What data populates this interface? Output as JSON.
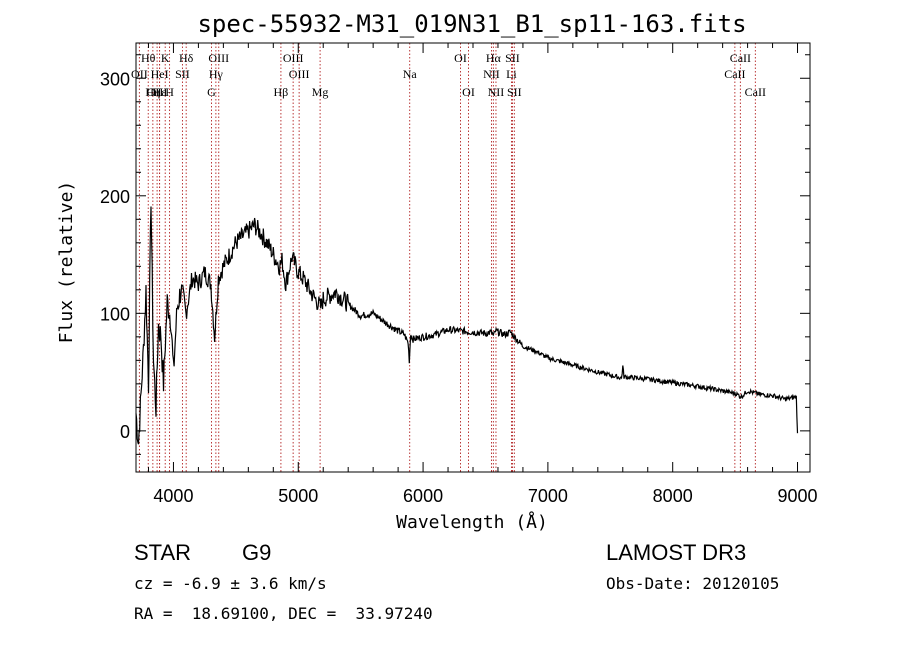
{
  "chart_data": {
    "type": "line",
    "title": "spec-55932-M31_019N31_B1_sp11-163.fits",
    "xlabel": "Wavelength (Å)",
    "ylabel": "Flux (relative)",
    "xlim": [
      3700,
      9100
    ],
    "ylim": [
      -35,
      330
    ],
    "xticks": [
      4000,
      5000,
      6000,
      7000,
      8000,
      9000
    ],
    "xtick_labels": [
      "4000",
      "5000",
      "6000",
      "7000",
      "8000",
      "9000"
    ],
    "yticks": [
      0,
      100,
      200,
      300
    ],
    "ytick_labels": [
      "0",
      "100",
      "200",
      "300"
    ],
    "series": [
      {
        "name": "flux",
        "x": [
          3700,
          3720,
          3740,
          3760,
          3780,
          3800,
          3820,
          3840,
          3860,
          3880,
          3900,
          3920,
          3950,
          3980,
          4000,
          4030,
          4060,
          4100,
          4150,
          4200,
          4250,
          4300,
          4330,
          4360,
          4400,
          4450,
          4500,
          4550,
          4600,
          4650,
          4700,
          4750,
          4800,
          4850,
          4870,
          4900,
          4950,
          5000,
          5050,
          5100,
          5150,
          5180,
          5200,
          5250,
          5300,
          5400,
          5500,
          5600,
          5700,
          5800,
          5850,
          5880,
          5890,
          5900,
          5920,
          6000,
          6100,
          6200,
          6300,
          6400,
          6500,
          6550,
          6563,
          6580,
          6650,
          6700,
          6800,
          6900,
          7000,
          7200,
          7400,
          7590,
          7600,
          7610,
          7800,
          8000,
          8200,
          8400,
          8500,
          8550,
          8600,
          8700,
          8800,
          8900,
          8950,
          8990,
          9000
        ],
        "y": [
          15,
          -10,
          30,
          70,
          120,
          40,
          200,
          60,
          20,
          90,
          80,
          40,
          110,
          95,
          50,
          105,
          120,
          100,
          130,
          125,
          135,
          125,
          80,
          130,
          140,
          150,
          160,
          165,
          170,
          175,
          168,
          160,
          150,
          140,
          145,
          125,
          148,
          135,
          128,
          118,
          110,
          105,
          112,
          115,
          118,
          108,
          98,
          100,
          92,
          85,
          82,
          75,
          60,
          82,
          78,
          80,
          82,
          86,
          85,
          84,
          83,
          84,
          80,
          85,
          82,
          84,
          72,
          68,
          62,
          56,
          50,
          45,
          55,
          46,
          44,
          41,
          38,
          34,
          32,
          29,
          34,
          31,
          30,
          27,
          28,
          29,
          -2
        ]
      }
    ],
    "lines": [
      {
        "name": "Hθ",
        "wl": 3798,
        "row": 1
      },
      {
        "name": "OII",
        "wl": 3727,
        "row": 2
      },
      {
        "name": "OIII",
        "wl": 3869,
        "row": 3
      },
      {
        "name": "Hε",
        "wl": 3889,
        "row": 3
      },
      {
        "name": "Hη",
        "wl": 3835,
        "row": 3
      },
      {
        "name": "K",
        "wl": 3934,
        "row": 1
      },
      {
        "name": "HeI",
        "wl": 3889,
        "row": 2
      },
      {
        "name": "H",
        "wl": 3969,
        "row": 3
      },
      {
        "name": "Hδ",
        "wl": 4102,
        "row": 1
      },
      {
        "name": "SII",
        "wl": 4072,
        "row": 2
      },
      {
        "name": "OIII",
        "wl": 4363,
        "row": 1
      },
      {
        "name": "Hγ",
        "wl": 4340,
        "row": 2
      },
      {
        "name": "G",
        "wl": 4305,
        "row": 3
      },
      {
        "name": "Hβ",
        "wl": 4861,
        "row": 3
      },
      {
        "name": "OIII",
        "wl": 4959,
        "row": 1
      },
      {
        "name": "OIII",
        "wl": 5007,
        "row": 2
      },
      {
        "name": "Mg",
        "wl": 5175,
        "row": 3
      },
      {
        "name": "Na",
        "wl": 5893,
        "row": 2
      },
      {
        "name": "OI",
        "wl": 6300,
        "row": 1
      },
      {
        "name": "OI",
        "wl": 6364,
        "row": 3
      },
      {
        "name": "Hα",
        "wl": 6563,
        "row": 1
      },
      {
        "name": "SII",
        "wl": 6716,
        "row": 1
      },
      {
        "name": "NII",
        "wl": 6548,
        "row": 2
      },
      {
        "name": "Li",
        "wl": 6708,
        "row": 2
      },
      {
        "name": "NII",
        "wl": 6584,
        "row": 3
      },
      {
        "name": "SII",
        "wl": 6731,
        "row": 3
      },
      {
        "name": "CaII",
        "wl": 8542,
        "row": 1
      },
      {
        "name": "CaII",
        "wl": 8498,
        "row": 2
      },
      {
        "name": "CaII",
        "wl": 8662,
        "row": 3
      }
    ]
  },
  "info": {
    "class_label": "STAR",
    "subclass": "G9",
    "survey": "LAMOST DR3",
    "cz_text": "cz = -6.9 ± 3.6 km/s",
    "obs_date_text": "Obs-Date: 20120105",
    "radec_text": "RA =  18.69100, DEC =  33.97240"
  },
  "colors": {
    "axis": "#000000",
    "spectrum": "#000000",
    "line_marker": "#b22222"
  }
}
